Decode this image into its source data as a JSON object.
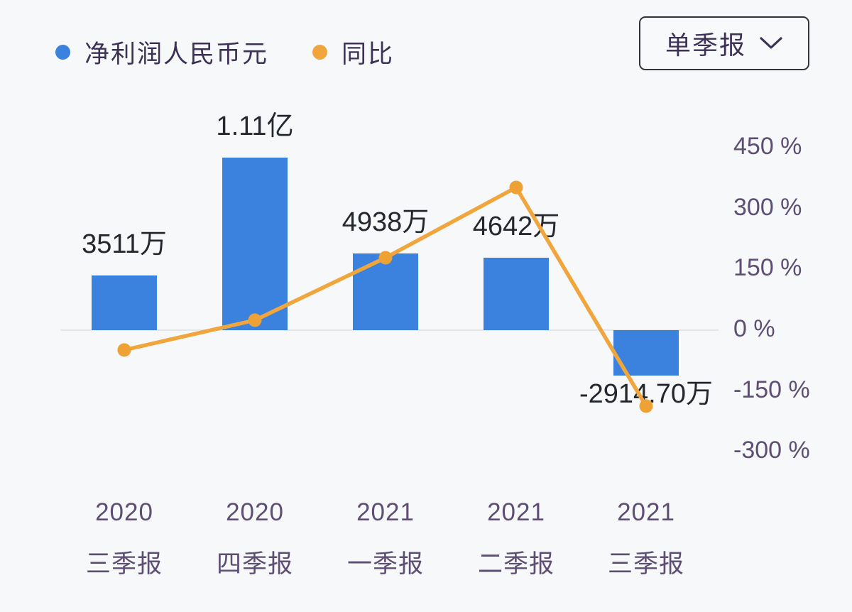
{
  "legend": {
    "items": [
      {
        "label": "净利润人民币元",
        "color": "#3a82de"
      },
      {
        "label": "同比",
        "color": "#f0a63c"
      }
    ]
  },
  "controls": {
    "period_selector": {
      "value": "单季报",
      "chevron_icon": "chevron-down"
    }
  },
  "chart_data": {
    "type": "bar+line",
    "categories": [
      {
        "year": "2020",
        "report": "三季报"
      },
      {
        "year": "2020",
        "report": "四季报"
      },
      {
        "year": "2021",
        "report": "一季报"
      },
      {
        "year": "2021",
        "report": "二季报"
      },
      {
        "year": "2021",
        "report": "三季报"
      }
    ],
    "series": [
      {
        "name": "净利润人民币元",
        "type": "bar",
        "unit": "万",
        "values": [
          3511,
          11100,
          4938,
          4642,
          -2914.7
        ],
        "labels": [
          "3511万",
          "1.11亿",
          "4938万",
          "4642万",
          "-2914.70万"
        ],
        "color": "#3a82de"
      },
      {
        "name": "同比",
        "type": "line",
        "unit": "%",
        "values": [
          -49,
          24,
          179,
          352,
          -187
        ],
        "color": "#f0a63c",
        "marker_color": "#eea235"
      }
    ],
    "right_axis": {
      "ticks": [
        "450 %",
        "300 %",
        "150 %",
        "0 %",
        "-150 %",
        "-300 %"
      ],
      "tick_values": [
        450,
        300,
        150,
        0,
        -150,
        -300
      ],
      "range": [
        -300,
        450
      ]
    },
    "title": "",
    "xlabel": "",
    "ylabel": "",
    "grid": "zero-line-only",
    "legend_position": "top-left"
  }
}
